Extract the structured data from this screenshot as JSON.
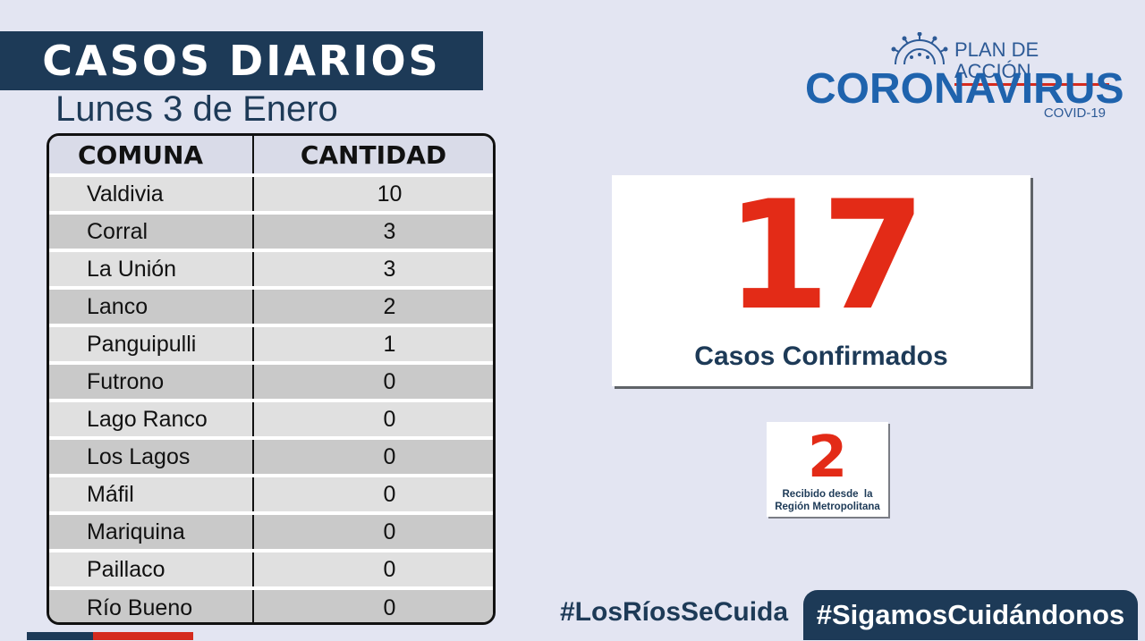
{
  "header": {
    "title": "CASOS DIARIOS",
    "date": "Lunes 3 de Enero"
  },
  "table": {
    "headers": [
      "COMUNA",
      "CANTIDAD"
    ],
    "rows": [
      {
        "comuna": "Valdivia",
        "cantidad": "10"
      },
      {
        "comuna": "Corral",
        "cantidad": "3"
      },
      {
        "comuna": "La Unión",
        "cantidad": "3"
      },
      {
        "comuna": "Lanco",
        "cantidad": "2"
      },
      {
        "comuna": "Panguipulli",
        "cantidad": "1"
      },
      {
        "comuna": "Futrono",
        "cantidad": "0"
      },
      {
        "comuna": "Lago Ranco",
        "cantidad": "0"
      },
      {
        "comuna": "Los Lagos",
        "cantidad": "0"
      },
      {
        "comuna": "Máfil",
        "cantidad": "0"
      },
      {
        "comuna": "Mariquina",
        "cantidad": "0"
      },
      {
        "comuna": "Paillaco",
        "cantidad": "0"
      },
      {
        "comuna": "Río Bueno",
        "cantidad": "0"
      }
    ]
  },
  "logo": {
    "plan": "PLAN DE ACCIÓN",
    "name": "CORONAVIRUS",
    "sub": "COVID-19",
    "icon": "virus-icon"
  },
  "confirmed": {
    "value": "17",
    "label": "Casos Confirmados"
  },
  "metropolitana": {
    "value": "2",
    "line1": "Recibido desde  la",
    "line2": "Región Metropolitana"
  },
  "hashtags": {
    "first": "#LosRíosSeCuida",
    "second": "#SigamosCuidándonos"
  },
  "colors": {
    "navy": "#1d3a57",
    "red": "#e32b17",
    "blue": "#1f63ad",
    "background": "#e3e5f2"
  }
}
